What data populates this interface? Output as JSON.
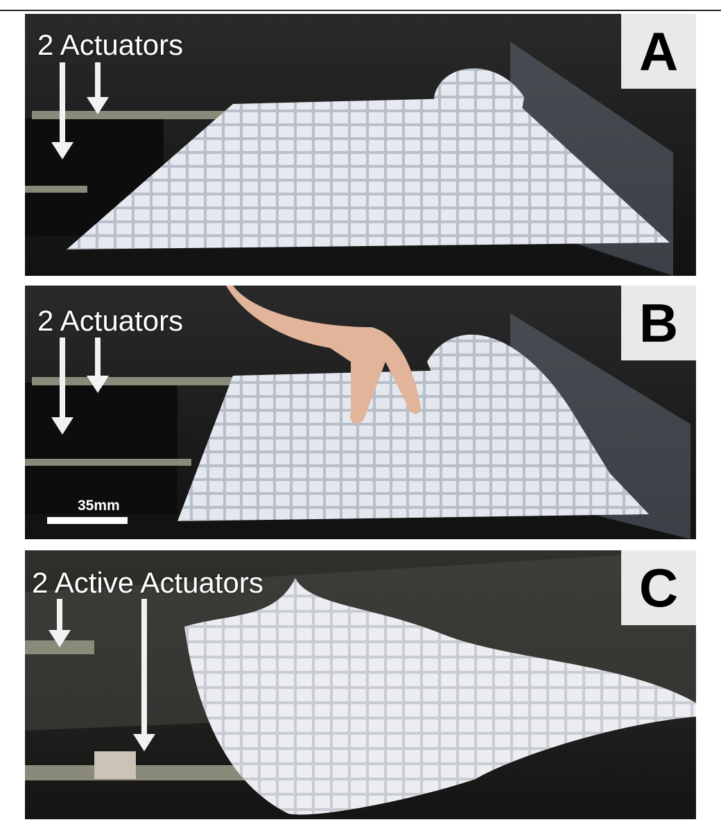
{
  "panels": [
    {
      "letter": "A",
      "caption": "2 Actuators"
    },
    {
      "letter": "B",
      "caption": "2 Actuators",
      "scale_label": "35mm"
    },
    {
      "letter": "C",
      "caption": "2 Active Actuators"
    }
  ],
  "colors": {
    "background": "#1a1a1a",
    "tile": "#dfe3ea",
    "arrow": "#f2f2f2",
    "label_box": "#e9e9e9"
  }
}
